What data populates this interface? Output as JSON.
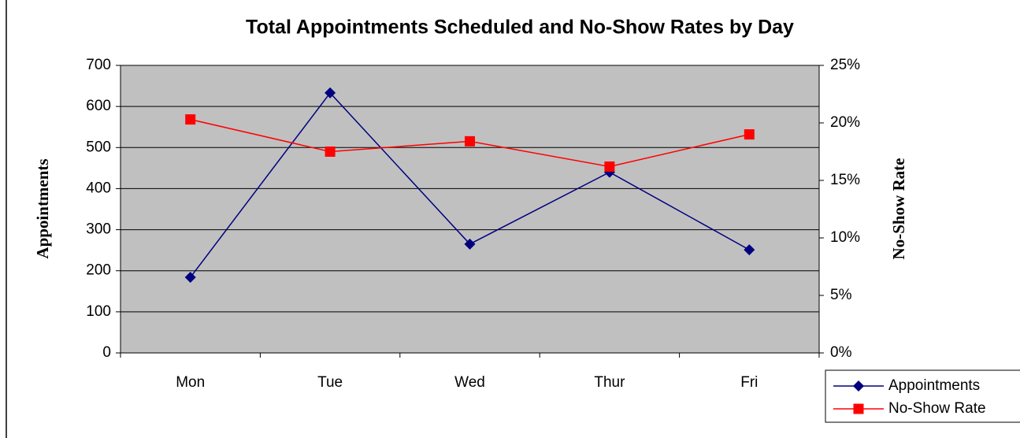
{
  "chart_data": {
    "type": "line",
    "title": "Total Appointments Scheduled and No-Show Rates by Day",
    "ylabel": "Appointments",
    "y2label": "No-Show Rate",
    "categories": [
      "Mon",
      "Tue",
      "Wed",
      "Thur",
      "Fri"
    ],
    "series": [
      {
        "name": "Appointments",
        "color": "#000080",
        "marker": "diamond",
        "values": [
          184,
          633,
          265,
          440,
          251
        ]
      },
      {
        "name": "No-Show Rate",
        "color": "#ff0000",
        "marker": "square",
        "axis": "y2",
        "values": [
          20.3,
          17.5,
          18.4,
          16.2,
          19.0
        ]
      }
    ],
    "ylim": [
      0,
      700
    ],
    "yticks": [
      0,
      100,
      200,
      300,
      400,
      500,
      600,
      700
    ],
    "y2lim": [
      0,
      25
    ],
    "y2ticks": [
      {
        "value": 0,
        "label": "0%"
      },
      {
        "value": 5,
        "label": "5%"
      },
      {
        "value": 10,
        "label": "10%"
      },
      {
        "value": 15,
        "label": "15%"
      },
      {
        "value": 20,
        "label": "20%"
      },
      {
        "value": 25,
        "label": "25%"
      }
    ],
    "grid": true,
    "legend": "bottom-right",
    "plot_background": "#c0c0c0"
  }
}
